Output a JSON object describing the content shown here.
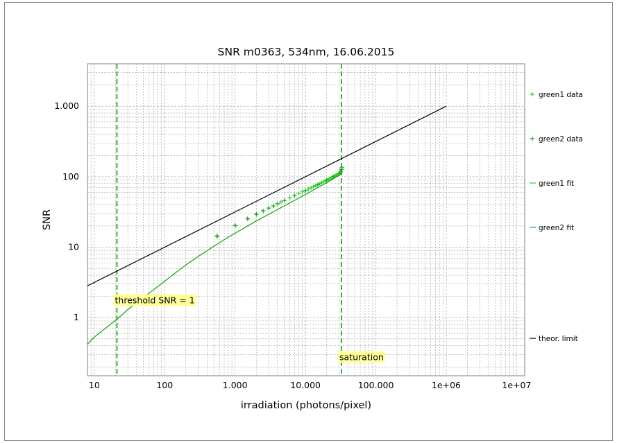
{
  "chart_data": {
    "type": "line",
    "title": "SNR m0363, 534nm, 16.06.2015",
    "xlabel": "irradiation (photons/pixel)",
    "ylabel": "SNR",
    "xscale": "log",
    "yscale": "log",
    "xlim": [
      8,
      13000000
    ],
    "ylim": [
      0.15,
      4000
    ],
    "grid": true,
    "legend_placement": "right",
    "x_ticks": [
      {
        "value": 10,
        "label": "10"
      },
      {
        "value": 100,
        "label": "100"
      },
      {
        "value": 1000,
        "label": "1.000"
      },
      {
        "value": 10000,
        "label": "10.000"
      },
      {
        "value": 100000,
        "label": "100.000"
      },
      {
        "value": 1000000,
        "label": "1e+06"
      },
      {
        "value": 10000000,
        "label": "1e+07"
      }
    ],
    "y_ticks": [
      {
        "value": 1,
        "label": "1"
      },
      {
        "value": 10,
        "label": "10"
      },
      {
        "value": 100,
        "label": "100"
      },
      {
        "value": 1000,
        "label": "1.000"
      }
    ],
    "series": [
      {
        "name": "green1 data",
        "kind": "points",
        "color": "#33cc33",
        "x": [
          550,
          1000,
          1500,
          2000,
          2500,
          3000,
          3500,
          4000,
          4500,
          5000,
          6000,
          7000,
          8000,
          9000,
          10000,
          11000,
          12000,
          13000,
          14000,
          15000,
          16000,
          17000,
          18000,
          19000,
          20000,
          21000,
          22000,
          23000,
          24000,
          25000,
          26000,
          27000,
          28000,
          29000,
          30000,
          31000,
          32000,
          32500
        ],
        "y": [
          14.5,
          20.5,
          25.5,
          29.5,
          33,
          36,
          38.5,
          41.5,
          44,
          46,
          50.5,
          54,
          57.5,
          61,
          64,
          67,
          69.5,
          72,
          75,
          77.5,
          80,
          82,
          84.5,
          87,
          89,
          91,
          93,
          95.5,
          98,
          100,
          102,
          104,
          106,
          108,
          110,
          112,
          116,
          125
        ]
      },
      {
        "name": "green2 data",
        "kind": "points",
        "color": "#22aa22",
        "x": [
          560,
          1010,
          1510,
          2010,
          2510,
          3010,
          3510,
          4010,
          5010,
          7010,
          10010,
          15010,
          20010,
          25010,
          30010,
          31500,
          32500,
          33000
        ],
        "y": [
          14.2,
          20.2,
          25.2,
          29.2,
          32.8,
          35.8,
          38.3,
          41.3,
          45.8,
          53.8,
          63.8,
          77.3,
          88.8,
          99.8,
          109.8,
          118,
          128,
          136
        ]
      },
      {
        "name": "green1 fit",
        "kind": "line",
        "color": "#33cc33",
        "x": [
          8,
          10,
          15,
          21,
          30,
          45,
          70,
          100,
          150,
          200,
          300,
          500,
          700,
          1000,
          2000,
          5000,
          10000,
          20000,
          32500
        ],
        "y": [
          0.42,
          0.53,
          0.73,
          0.95,
          1.3,
          1.8,
          2.5,
          3.3,
          4.5,
          5.6,
          7.4,
          10.3,
          12.8,
          15.8,
          23.5,
          38.5,
          56,
          82,
          110
        ]
      },
      {
        "name": "green2 fit",
        "kind": "line",
        "color": "#22aa22",
        "x": [
          8,
          10,
          15,
          21,
          30,
          45,
          70,
          100,
          150,
          200,
          300,
          500,
          700,
          1000,
          2000,
          5000,
          10000,
          20000,
          32500
        ],
        "y": [
          0.42,
          0.53,
          0.73,
          0.95,
          1.3,
          1.8,
          2.5,
          3.3,
          4.5,
          5.6,
          7.4,
          10.3,
          12.8,
          15.8,
          23.5,
          38.5,
          56,
          82,
          110
        ]
      },
      {
        "name": "theor. limit",
        "kind": "line",
        "color": "#000000",
        "x": [
          8,
          1000000
        ],
        "y": [
          2.83,
          1000
        ]
      }
    ],
    "vlines": [
      {
        "x": 21,
        "color": "#22aa22",
        "dashed": true
      },
      {
        "x": 32500,
        "color": "#22aa22",
        "dashed": true
      }
    ],
    "annotations": [
      {
        "text": "threshold SNR = 1",
        "x": 21,
        "y": 1.6,
        "background": "#ffff99"
      },
      {
        "text": "saturation",
        "x": 32500,
        "y": 0.25,
        "background": "#ffff99"
      }
    ]
  }
}
